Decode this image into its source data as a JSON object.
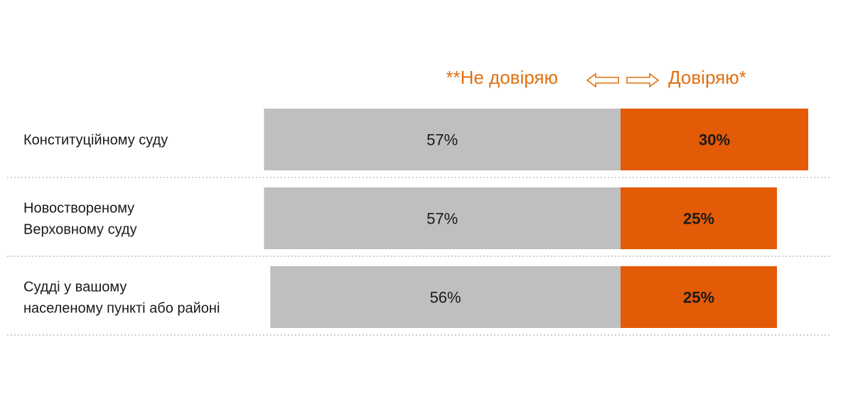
{
  "legend": {
    "left_label": "**Не довіряю",
    "right_label": "Довіряю*",
    "arrow_left_icon": "left-outline-arrow-icon",
    "arrow_right_icon": "right-outline-arrow-icon"
  },
  "colors": {
    "distrust": "#bfbfbf",
    "trust": "#e35a07",
    "legend_text": "#e0700f",
    "value_text": "#1a1a1a",
    "separator": "#b0b0b0"
  },
  "chart_data": {
    "type": "bar",
    "orientation": "horizontal-diverging",
    "categories": [
      [
        "Конституційному  суду"
      ],
      [
        "Новоствореному",
        "Верховному суду"
      ],
      [
        "Судді у вашому",
        "населеному  пункті  або районі"
      ]
    ],
    "series": [
      {
        "name": "**Не довіряю",
        "values": [
          57,
          57,
          56
        ],
        "labels": [
          "57%",
          "57%",
          "56%"
        ]
      },
      {
        "name": "Довіряю*",
        "values": [
          30,
          25,
          25
        ],
        "labels": [
          "30%",
          "25%",
          "25%"
        ]
      }
    ],
    "grid": false,
    "legend_position": "top"
  }
}
